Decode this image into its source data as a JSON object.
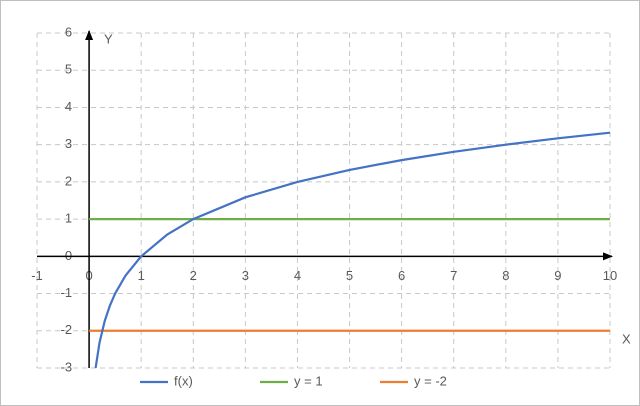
{
  "chart_data": {
    "type": "line",
    "x_label": "X",
    "y_label": "Y",
    "xlim": [
      -1,
      10
    ],
    "xticks": [
      -1,
      0,
      1,
      2,
      3,
      4,
      5,
      6,
      7,
      8,
      9,
      10
    ],
    "ylim": [
      -3,
      6
    ],
    "yticks": [
      -3,
      -2,
      -1,
      0,
      1,
      2,
      3,
      4,
      5,
      6
    ],
    "grid": true,
    "legend": "bottom",
    "series": [
      {
        "name": "f(x)",
        "color": "#4472c4",
        "x": [
          0.125,
          0.2,
          0.3,
          0.4,
          0.5,
          0.7,
          1,
          1.5,
          2,
          3,
          4,
          5,
          6,
          7,
          8,
          9,
          10
        ],
        "values": [
          -3,
          -2.322,
          -1.737,
          -1.322,
          -1,
          -0.515,
          0,
          0.585,
          1,
          1.585,
          2,
          2.322,
          2.585,
          2.807,
          3,
          3.17,
          3.322
        ]
      },
      {
        "name": "y = 1",
        "color": "#70ad47",
        "x": [
          0,
          10
        ],
        "values": [
          1,
          1
        ]
      },
      {
        "name": "y = -2",
        "color": "#ed7d31",
        "x": [
          0,
          10
        ],
        "values": [
          -2,
          -2
        ]
      }
    ]
  }
}
